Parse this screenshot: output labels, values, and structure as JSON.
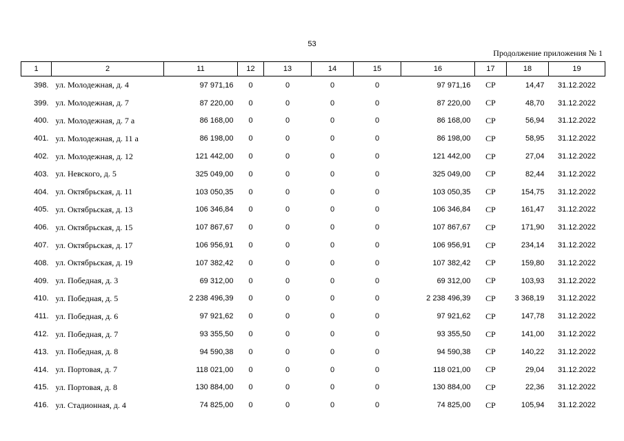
{
  "page_number": "53",
  "continuation_note": "Продолжение приложения № 1",
  "columns": [
    "1",
    "2",
    "11",
    "12",
    "13",
    "14",
    "15",
    "16",
    "17",
    "18",
    "19"
  ],
  "rows": [
    [
      "398.",
      "ул. Молодежная, д. 4",
      "97 971,16",
      "0",
      "0",
      "0",
      "0",
      "97 971,16",
      "СР",
      "14,47",
      "31.12.2022"
    ],
    [
      "399.",
      "ул. Молодежная, д. 7",
      "87 220,00",
      "0",
      "0",
      "0",
      "0",
      "87 220,00",
      "СР",
      "48,70",
      "31.12.2022"
    ],
    [
      "400.",
      "ул. Молодежная, д. 7 а",
      "86 168,00",
      "0",
      "0",
      "0",
      "0",
      "86 168,00",
      "СР",
      "56,94",
      "31.12.2022"
    ],
    [
      "401.",
      "ул. Молодежная, д. 11 а",
      "86 198,00",
      "0",
      "0",
      "0",
      "0",
      "86 198,00",
      "СР",
      "58,95",
      "31.12.2022"
    ],
    [
      "402.",
      "ул. Молодежная, д. 12",
      "121 442,00",
      "0",
      "0",
      "0",
      "0",
      "121 442,00",
      "СР",
      "27,04",
      "31.12.2022"
    ],
    [
      "403.",
      "ул. Невского, д. 5",
      "325 049,00",
      "0",
      "0",
      "0",
      "0",
      "325 049,00",
      "СР",
      "82,44",
      "31.12.2022"
    ],
    [
      "404.",
      "ул. Октябрьская, д. 11",
      "103 050,35",
      "0",
      "0",
      "0",
      "0",
      "103 050,35",
      "СР",
      "154,75",
      "31.12.2022"
    ],
    [
      "405.",
      "ул. Октябрьская, д. 13",
      "106 346,84",
      "0",
      "0",
      "0",
      "0",
      "106 346,84",
      "СР",
      "161,47",
      "31.12.2022"
    ],
    [
      "406.",
      "ул. Октябрьская, д. 15",
      "107 867,67",
      "0",
      "0",
      "0",
      "0",
      "107 867,67",
      "СР",
      "171,90",
      "31.12.2022"
    ],
    [
      "407.",
      "ул. Октябрьская, д. 17",
      "106 956,91",
      "0",
      "0",
      "0",
      "0",
      "106 956,91",
      "СР",
      "234,14",
      "31.12.2022"
    ],
    [
      "408.",
      "ул. Октябрьская, д. 19",
      "107 382,42",
      "0",
      "0",
      "0",
      "0",
      "107 382,42",
      "СР",
      "159,80",
      "31.12.2022"
    ],
    [
      "409.",
      "ул. Победная, д. 3",
      "69 312,00",
      "0",
      "0",
      "0",
      "0",
      "69 312,00",
      "СР",
      "103,93",
      "31.12.2022"
    ],
    [
      "410.",
      "ул. Победная, д. 5",
      "2 238 496,39",
      "0",
      "0",
      "0",
      "0",
      "2 238 496,39",
      "СР",
      "3 368,19",
      "31.12.2022"
    ],
    [
      "411.",
      "ул. Победная, д. 6",
      "97 921,62",
      "0",
      "0",
      "0",
      "0",
      "97 921,62",
      "СР",
      "147,78",
      "31.12.2022"
    ],
    [
      "412.",
      "ул. Победная, д. 7",
      "93 355,50",
      "0",
      "0",
      "0",
      "0",
      "93 355,50",
      "СР",
      "141,00",
      "31.12.2022"
    ],
    [
      "413.",
      "ул. Победная, д. 8",
      "94 590,38",
      "0",
      "0",
      "0",
      "0",
      "94 590,38",
      "СР",
      "140,22",
      "31.12.2022"
    ],
    [
      "414.",
      "ул. Портовая, д. 7",
      "118 021,00",
      "0",
      "0",
      "0",
      "0",
      "118 021,00",
      "СР",
      "29,04",
      "31.12.2022"
    ],
    [
      "415.",
      "ул. Портовая, д. 8",
      "130 884,00",
      "0",
      "0",
      "0",
      "0",
      "130 884,00",
      "СР",
      "22,36",
      "31.12.2022"
    ],
    [
      "416.",
      "ул. Стадионная, д. 4",
      "74 825,00",
      "0",
      "0",
      "0",
      "0",
      "74 825,00",
      "СР",
      "105,94",
      "31.12.2022"
    ]
  ]
}
